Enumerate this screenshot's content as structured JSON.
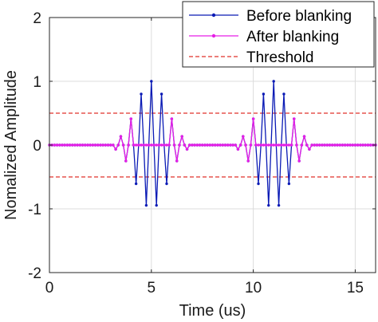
{
  "chart_data": {
    "type": "line",
    "xlabel": "Time (us)",
    "ylabel": "Nomalized Amplitude",
    "xlim": [
      0,
      16
    ],
    "ylim": [
      -2,
      2
    ],
    "xticks": [
      0,
      5,
      10,
      15
    ],
    "yticks": [
      -2,
      -1,
      0,
      1,
      2
    ],
    "grid": true,
    "legend_position": "top-right",
    "signal": {
      "sample_step_us": 0.125,
      "carrier_period_us": 0.5,
      "bursts": [
        {
          "center_us": 5,
          "sigma_us": 0.75,
          "start_us": 3.25,
          "end_us": 6.75
        },
        {
          "center_us": 11,
          "sigma_us": 0.75,
          "start_us": 9.25,
          "end_us": 12.75
        }
      ],
      "peak_amplitude": 1.0
    },
    "threshold": 0.5,
    "series": [
      {
        "name": "Before blanking",
        "color": "#0a1ab5",
        "style": "solid-dot-markers"
      },
      {
        "name": "After blanking",
        "color": "#e61ee6",
        "style": "solid-dot-markers"
      },
      {
        "name": "Threshold",
        "color": "#e0302a",
        "style": "dashed"
      }
    ]
  }
}
